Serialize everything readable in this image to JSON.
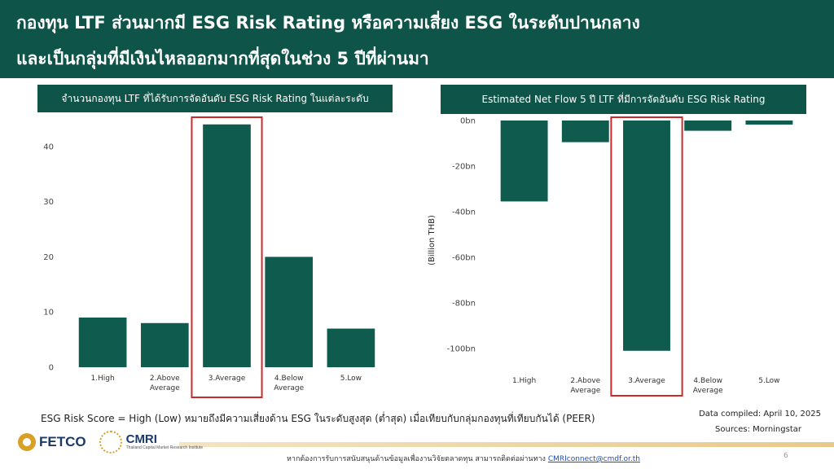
{
  "header": {
    "line1": "กองทุน LTF ส่วนมากมี ESG Risk Rating หรือความเสี่ยง ESG ในระดับปานกลาง",
    "line2": "และเป็นกลุ่มที่มีเงินไหลออกมากที่สุดในช่วง 5 ปีที่ผ่านมา"
  },
  "colors": {
    "header_bg": "#0f5449",
    "bar": "#0f5c4e",
    "highlight_box": "#cc2a2a",
    "gold": "#d8a126"
  },
  "chart_data": [
    {
      "type": "bar",
      "title": "จำนวนกองทุน LTF ที่ได้รับการจัดอันดับ ESG Risk Rating ในแต่ละระดับ",
      "categories": [
        "1.High",
        "2.Above Average",
        "3.Average",
        "4.Below Average",
        "5.Low"
      ],
      "values": [
        9,
        8,
        44,
        20,
        7
      ],
      "ylim": [
        0,
        45
      ],
      "yticks": [
        "0",
        "10",
        "20",
        "30",
        "40"
      ],
      "ytick_values": [
        0,
        10,
        20,
        30,
        40
      ],
      "highlight": "3.Average",
      "grid": false
    },
    {
      "type": "bar",
      "title": "Estimated Net Flow 5 ปี LTF ที่มีการจัดอันดับ ESG Risk Rating",
      "ylabel": "(Billion THB)",
      "categories": [
        "1.High",
        "2.Above Average",
        "3.Average",
        "4.Below Average",
        "5.Low"
      ],
      "values": [
        -35.5,
        -9.5,
        -101,
        -4.5,
        -1.8
      ],
      "ylim": [
        -105,
        0
      ],
      "yticks": [
        "0bn",
        "-20bn",
        "-40bn",
        "-60bn",
        "-80bn",
        "-100bn"
      ],
      "ytick_values": [
        0,
        -20,
        -40,
        -60,
        -80,
        -100
      ],
      "highlight": "3.Average",
      "grid": false
    }
  ],
  "footer": {
    "note": "ESG Risk Score = High (Low) หมายถึงมีความเสี่ยงด้าน ESG ในระดับสูงสุด (ต่ำสุด) เมื่อเทียบกับกลุ่มกองทุนที่เทียบกันได้ (PEER)",
    "compiled": "Data compiled:  April 10, 2025",
    "sources": "Sources:  Morningstar",
    "fetco": "FETCO",
    "cmri": "CMRI",
    "cmri_sub": "Thailand Capital Market Research Institute",
    "contact_text": "หากต้องการรับการสนับสนุนด้านข้อมูลเพื่องานวิจัยตลาดทุน สามารถติดต่อผ่านทาง ",
    "contact_email": "CMRIconnect@cmdf.or.th",
    "page": "6"
  }
}
